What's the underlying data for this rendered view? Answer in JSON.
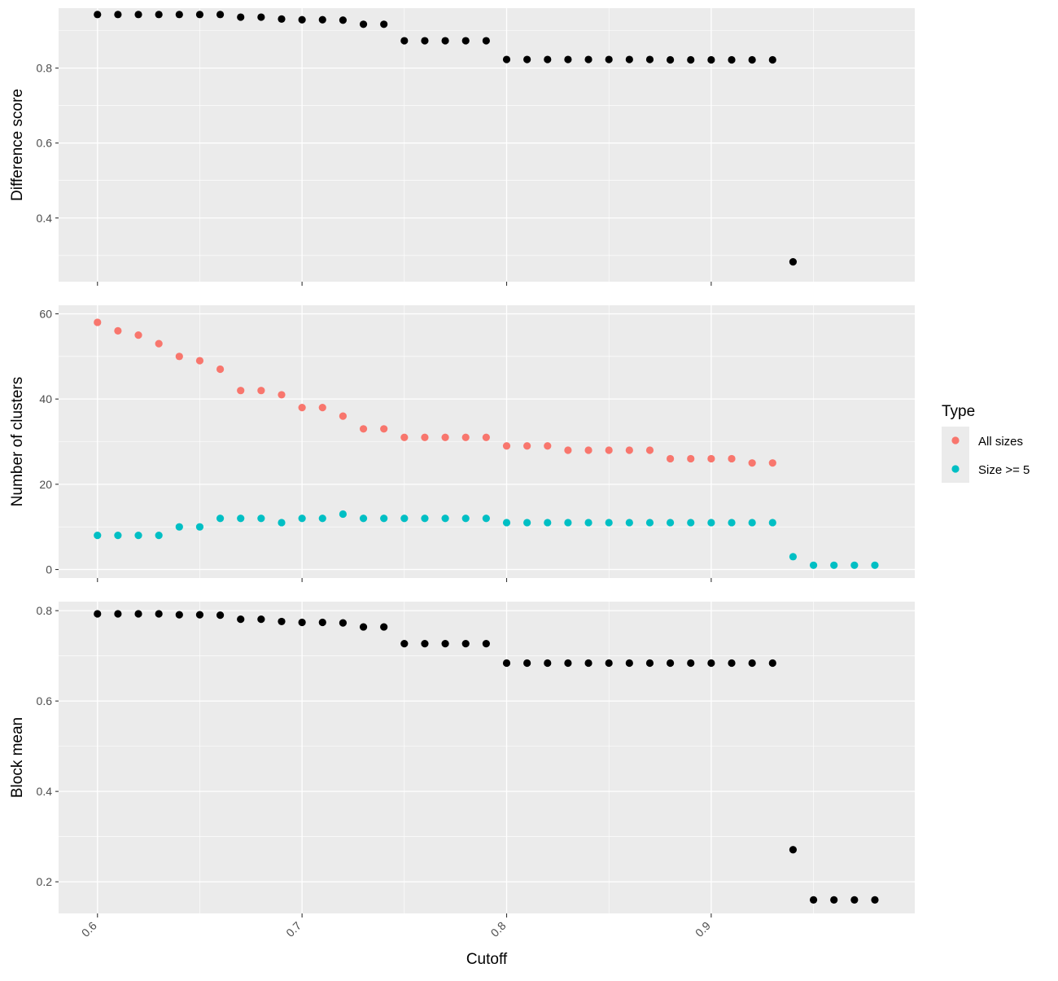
{
  "chart_data": {
    "type": "scatter",
    "xlabel": "Cutoff",
    "xlim": [
      0.581,
      0.9995
    ],
    "x_ticks": [
      0.6,
      0.7,
      0.8,
      0.9
    ],
    "x_tick_labels": [
      "0.6",
      "0.7",
      "0.8",
      "0.9"
    ],
    "x_tick_rotation": "45",
    "legend": {
      "title": "Type",
      "placement": "right",
      "entries": [
        {
          "label": "All sizes",
          "color": "#F8766D"
        },
        {
          "label": "Size >= 5",
          "color": "#00BFC4"
        }
      ]
    },
    "panels": [
      {
        "ylabel": "Difference score",
        "ylim": [
          0.23,
          0.96
        ],
        "y_ticks": [
          0.4,
          0.6,
          0.8
        ],
        "y_tick_labels": [
          "0.4",
          "0.6",
          "0.8"
        ],
        "series": [
          {
            "color": "#000000",
            "x": [
              0.6,
              0.61,
              0.62,
              0.63,
              0.64,
              0.65,
              0.66,
              0.67,
              0.68,
              0.69,
              0.7,
              0.71,
              0.72,
              0.73,
              0.74,
              0.75,
              0.76,
              0.77,
              0.78,
              0.79,
              0.8,
              0.81,
              0.82,
              0.83,
              0.84,
              0.85,
              0.86,
              0.87,
              0.88,
              0.89,
              0.9,
              0.91,
              0.92,
              0.93,
              0.94
            ],
            "y": [
              0.943,
              0.943,
              0.943,
              0.943,
              0.943,
              0.943,
              0.943,
              0.936,
              0.936,
              0.931,
              0.929,
              0.929,
              0.928,
              0.917,
              0.917,
              0.873,
              0.873,
              0.873,
              0.873,
              0.873,
              0.823,
              0.823,
              0.823,
              0.823,
              0.823,
              0.823,
              0.823,
              0.823,
              0.822,
              0.822,
              0.822,
              0.822,
              0.822,
              0.822,
              0.283
            ]
          }
        ]
      },
      {
        "ylabel": "Number of clusters",
        "ylim": [
          -2,
          62
        ],
        "y_ticks": [
          0,
          20,
          40,
          60
        ],
        "y_tick_labels": [
          "0",
          "20",
          "40",
          "60"
        ],
        "series": [
          {
            "name": "All sizes",
            "color": "#F8766D",
            "x": [
              0.6,
              0.61,
              0.62,
              0.63,
              0.64,
              0.65,
              0.66,
              0.67,
              0.68,
              0.69,
              0.7,
              0.71,
              0.72,
              0.73,
              0.74,
              0.75,
              0.76,
              0.77,
              0.78,
              0.79,
              0.8,
              0.81,
              0.82,
              0.83,
              0.84,
              0.85,
              0.86,
              0.87,
              0.88,
              0.89,
              0.9,
              0.91,
              0.92,
              0.93
            ],
            "y": [
              58,
              56,
              55,
              53,
              50,
              49,
              47,
              42,
              42,
              41,
              38,
              38,
              36,
              33,
              33,
              31,
              31,
              31,
              31,
              31,
              29,
              29,
              29,
              28,
              28,
              28,
              28,
              28,
              26,
              26,
              26,
              26,
              25,
              25
            ]
          },
          {
            "name": "Size >= 5",
            "color": "#00BFC4",
            "x": [
              0.6,
              0.61,
              0.62,
              0.63,
              0.64,
              0.65,
              0.66,
              0.67,
              0.68,
              0.69,
              0.7,
              0.71,
              0.72,
              0.73,
              0.74,
              0.75,
              0.76,
              0.77,
              0.78,
              0.79,
              0.8,
              0.81,
              0.82,
              0.83,
              0.84,
              0.85,
              0.86,
              0.87,
              0.88,
              0.89,
              0.9,
              0.91,
              0.92,
              0.93,
              0.94,
              0.95,
              0.96,
              0.97,
              0.98
            ],
            "y": [
              8,
              8,
              8,
              8,
              10,
              10,
              12,
              12,
              12,
              11,
              12,
              12,
              13,
              12,
              12,
              12,
              12,
              12,
              12,
              12,
              11,
              11,
              11,
              11,
              11,
              11,
              11,
              11,
              11,
              11,
              11,
              11,
              11,
              11,
              3,
              1,
              1,
              1,
              1
            ]
          }
        ]
      },
      {
        "ylabel": "Block mean",
        "ylim": [
          0.13,
          0.82
        ],
        "y_ticks": [
          0.2,
          0.4,
          0.6,
          0.8
        ],
        "y_tick_labels": [
          "0.2",
          "0.4",
          "0.6",
          "0.8"
        ],
        "series": [
          {
            "color": "#000000",
            "x": [
              0.6,
              0.61,
              0.62,
              0.63,
              0.64,
              0.65,
              0.66,
              0.67,
              0.68,
              0.69,
              0.7,
              0.71,
              0.72,
              0.73,
              0.74,
              0.75,
              0.76,
              0.77,
              0.78,
              0.79,
              0.8,
              0.81,
              0.82,
              0.83,
              0.84,
              0.85,
              0.86,
              0.87,
              0.88,
              0.89,
              0.9,
              0.91,
              0.92,
              0.93,
              0.94,
              0.95,
              0.96,
              0.97,
              0.98
            ],
            "y": [
              0.793,
              0.793,
              0.793,
              0.793,
              0.791,
              0.791,
              0.79,
              0.781,
              0.781,
              0.776,
              0.774,
              0.774,
              0.773,
              0.764,
              0.764,
              0.727,
              0.727,
              0.727,
              0.727,
              0.727,
              0.684,
              0.684,
              0.684,
              0.684,
              0.684,
              0.684,
              0.684,
              0.684,
              0.684,
              0.684,
              0.684,
              0.684,
              0.684,
              0.684,
              0.271,
              0.16,
              0.16,
              0.16,
              0.16
            ]
          }
        ]
      }
    ]
  }
}
